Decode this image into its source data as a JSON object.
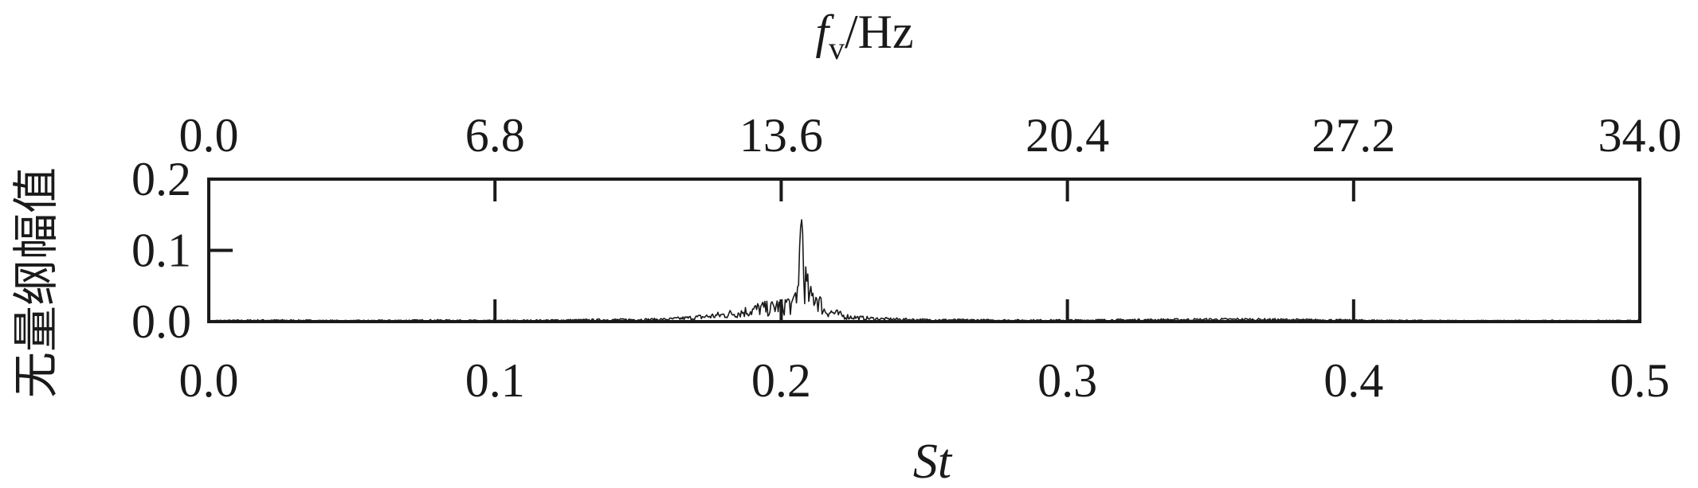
{
  "chart_data": {
    "type": "line",
    "title": "",
    "xlabel": "St",
    "x2label": {
      "main": "f",
      "subscript": "v",
      "unit": "/Hz"
    },
    "ylabel": "无量纲幅值",
    "xlim": [
      0.0,
      0.5
    ],
    "x2lim": [
      0.0,
      34.0
    ],
    "ylim": [
      0.0,
      0.2
    ],
    "x_ticks": [
      "0.0",
      "0.1",
      "0.2",
      "0.3",
      "0.4",
      "0.5"
    ],
    "x2_ticks": [
      "0.0",
      "6.8",
      "13.6",
      "20.4",
      "27.2",
      "34.0"
    ],
    "y_ticks": [
      "0.0",
      "0.1",
      "0.2"
    ],
    "grid": false,
    "series": [
      {
        "x": [
          0.0,
          0.02,
          0.05,
          0.08,
          0.1,
          0.12,
          0.14,
          0.16,
          0.17,
          0.175,
          0.18,
          0.185,
          0.19,
          0.193,
          0.196,
          0.199,
          0.2,
          0.202,
          0.204,
          0.205,
          0.206,
          0.207,
          0.208,
          0.21,
          0.212,
          0.215,
          0.218,
          0.222,
          0.228,
          0.235,
          0.25,
          0.28,
          0.3,
          0.33,
          0.36,
          0.4,
          0.43,
          0.46,
          0.5
        ],
        "y": [
          0.002,
          0.003,
          0.002,
          0.003,
          0.002,
          0.003,
          0.004,
          0.005,
          0.009,
          0.012,
          0.015,
          0.02,
          0.025,
          0.03,
          0.028,
          0.036,
          0.022,
          0.045,
          0.03,
          0.06,
          0.07,
          0.15,
          0.1,
          0.05,
          0.06,
          0.025,
          0.02,
          0.012,
          0.008,
          0.006,
          0.004,
          0.003,
          0.003,
          0.004,
          0.005,
          0.003,
          0.002,
          0.002,
          0.002
        ]
      }
    ]
  }
}
